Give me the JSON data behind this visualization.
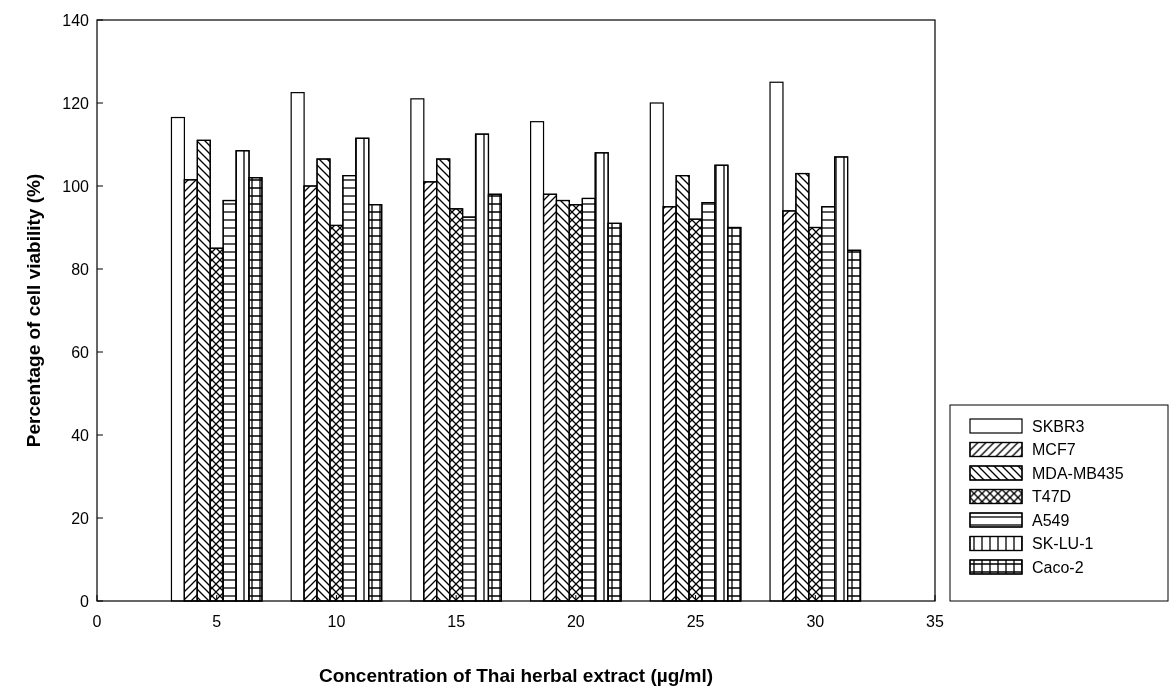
{
  "chart_data": {
    "type": "bar",
    "xlabel": "Concentration of Thai herbal extract (µg/ml)",
    "ylabel": "Percentage of cell viability (%)",
    "x": [
      5,
      10,
      15,
      20,
      25,
      30
    ],
    "xlim": [
      0,
      35
    ],
    "xticks": [
      0,
      5,
      10,
      15,
      20,
      25,
      30,
      35
    ],
    "ylim": [
      0,
      140
    ],
    "yticks": [
      0,
      20,
      40,
      60,
      80,
      100,
      120,
      140
    ],
    "legend": "bottom right",
    "grid": false,
    "series": [
      {
        "name": "SKBR3",
        "color": "#ffffff",
        "values": [
          116.5,
          122.5,
          121,
          115.5,
          120,
          125
        ]
      },
      {
        "name": "MCF7",
        "color": "#ffffff",
        "values": [
          101.5,
          100,
          101,
          98,
          95,
          94
        ]
      },
      {
        "name": "MDA-MB435",
        "color": "#ffffff",
        "values": [
          111,
          106.5,
          106.5,
          96.5,
          102.5,
          103
        ]
      },
      {
        "name": "T47D",
        "color": "#ffffff",
        "values": [
          85,
          90.5,
          94.5,
          95.5,
          92,
          90
        ]
      },
      {
        "name": "A549",
        "color": "#ffffff",
        "values": [
          96.5,
          102.5,
          92.5,
          97,
          96,
          95
        ]
      },
      {
        "name": "SK-LU-1",
        "color": "#ffffff",
        "values": [
          108.5,
          111.5,
          112.5,
          108,
          105,
          107
        ]
      },
      {
        "name": "Caco-2",
        "color": "#ffffff",
        "values": [
          102,
          95.5,
          98,
          91,
          90,
          84.5
        ]
      }
    ]
  }
}
